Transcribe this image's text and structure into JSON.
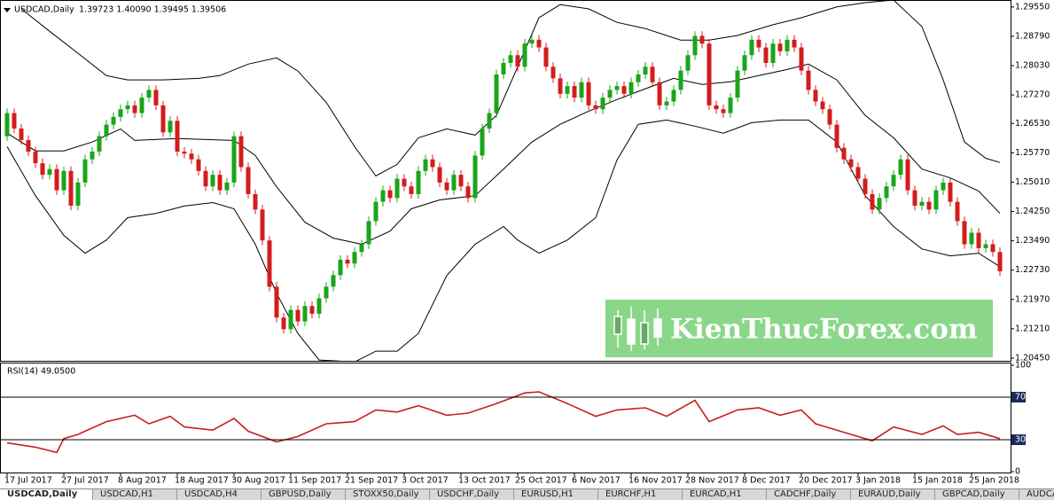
{
  "chart_data": [
    {
      "type": "candlestick",
      "title": "USDCAD,Daily",
      "subtitle": "1.39723 1.40090 1.39495 1.39506",
      "up_color": "#1aa51a",
      "down_color": "#d41c1c",
      "xlim": [
        -1,
        141.5
      ],
      "ylim": [
        1.2038,
        1.2973
      ],
      "xticks": [
        {
          "value": 0,
          "label": "17 Jul 2017"
        },
        {
          "value": 8,
          "label": "27 Jul 2017"
        },
        {
          "value": 16,
          "label": "8 Aug 2017"
        },
        {
          "value": 24,
          "label": "18 Aug 2017"
        },
        {
          "value": 32,
          "label": "30 Aug 2017"
        },
        {
          "value": 40,
          "label": "11 Sep 2017"
        },
        {
          "value": 48,
          "label": "21 Sep 2017"
        },
        {
          "value": 56,
          "label": "3 Oct 2017"
        },
        {
          "value": 64,
          "label": "13 Oct 2017"
        },
        {
          "value": 72,
          "label": "25 Oct 2017"
        },
        {
          "value": 80,
          "label": "6 Nov 2017"
        },
        {
          "value": 88,
          "label": "16 Nov 2017"
        },
        {
          "value": 96,
          "label": "28 Nov 2017"
        },
        {
          "value": 104,
          "label": "8 Dec 2017"
        },
        {
          "value": 112,
          "label": "20 Dec 2017"
        },
        {
          "value": 120,
          "label": "3 Jan 2018"
        },
        {
          "value": 128,
          "label": "15 Jan 2018"
        },
        {
          "value": 136,
          "label": "25 Jan 2018"
        }
      ],
      "yticks": [
        {
          "value": 1.2955,
          "label": "1.29550"
        },
        {
          "value": 1.2879,
          "label": "1.28790"
        },
        {
          "value": 1.2803,
          "label": "1.28030"
        },
        {
          "value": 1.2727,
          "label": "1.27270"
        },
        {
          "value": 1.2653,
          "label": "1.26530"
        },
        {
          "value": 1.2577,
          "label": "1.25770"
        },
        {
          "value": 1.2501,
          "label": "1.25010"
        },
        {
          "value": 1.2425,
          "label": "1.24250"
        },
        {
          "value": 1.2349,
          "label": "1.23490"
        },
        {
          "value": 1.2273,
          "label": "1.22730"
        },
        {
          "value": 1.2197,
          "label": "1.21970"
        },
        {
          "value": 1.2121,
          "label": "1.21210"
        },
        {
          "value": 1.2045,
          "label": "1.20450"
        }
      ],
      "open": [
        1.262,
        1.268,
        1.264,
        1.261,
        1.258,
        1.255,
        1.252,
        1.2535,
        1.248,
        1.253,
        1.244,
        1.25,
        1.256,
        1.258,
        1.262,
        1.265,
        1.267,
        1.269,
        1.27,
        1.268,
        1.272,
        1.274,
        1.27,
        1.263,
        1.266,
        1.258,
        1.2575,
        1.256,
        1.253,
        1.249,
        1.252,
        1.248,
        1.25,
        1.262,
        1.254,
        1.247,
        1.243,
        1.235,
        1.223,
        1.215,
        1.212,
        1.217,
        1.214,
        1.218,
        1.216,
        1.22,
        1.223,
        1.226,
        1.23,
        1.229,
        1.232,
        1.234,
        1.24,
        1.245,
        1.248,
        1.246,
        1.251,
        1.249,
        1.247,
        1.253,
        1.256,
        1.254,
        1.25,
        1.248,
        1.252,
        1.249,
        1.246,
        1.257,
        1.264,
        1.268,
        1.278,
        1.281,
        1.283,
        1.28,
        1.286,
        1.287,
        1.285,
        1.28,
        1.277,
        1.273,
        1.275,
        1.272,
        1.276,
        1.27,
        1.269,
        1.272,
        1.274,
        1.275,
        1.273,
        1.276,
        1.278,
        1.28,
        1.276,
        1.27,
        1.271,
        1.274,
        1.279,
        1.283,
        1.288,
        1.286,
        1.27,
        1.269,
        1.268,
        1.272,
        1.279,
        1.283,
        1.287,
        1.285,
        1.281,
        1.286,
        1.284,
        1.287,
        1.285,
        1.279,
        1.274,
        1.271,
        1.269,
        1.265,
        1.259,
        1.256,
        1.254,
        1.251,
        1.247,
        1.243,
        1.246,
        1.249,
        1.252,
        1.256,
        1.248,
        1.244,
        1.245,
        1.243,
        1.248,
        1.25,
        1.245,
        1.24,
        1.234,
        1.237,
        1.233,
        1.234,
        1.232
      ],
      "high": [
        1.2692,
        1.2692,
        1.2652,
        1.2622,
        1.2592,
        1.2562,
        1.2547,
        1.2547,
        1.2542,
        1.2542,
        1.2512,
        1.2572,
        1.2592,
        1.2632,
        1.2662,
        1.2682,
        1.2702,
        1.2712,
        1.2712,
        1.2732,
        1.2752,
        1.2752,
        1.2712,
        1.2672,
        1.2672,
        1.2592,
        1.2587,
        1.2572,
        1.2542,
        1.2532,
        1.2532,
        1.2512,
        1.2632,
        1.2632,
        1.2552,
        1.2482,
        1.2442,
        1.2362,
        1.2242,
        1.2162,
        1.2182,
        1.2182,
        1.2192,
        1.2192,
        1.2212,
        1.2242,
        1.2272,
        1.2312,
        1.2312,
        1.2332,
        1.2352,
        1.2412,
        1.2462,
        1.2492,
        1.2492,
        1.2522,
        1.2522,
        1.2502,
        1.2542,
        1.2572,
        1.2572,
        1.2552,
        1.2512,
        1.2532,
        1.2532,
        1.2502,
        1.2582,
        1.2652,
        1.2692,
        1.2792,
        1.2822,
        1.2842,
        1.2842,
        1.2872,
        1.2882,
        1.2882,
        1.2862,
        1.2812,
        1.2782,
        1.2762,
        1.2762,
        1.2772,
        1.2772,
        1.2712,
        1.2732,
        1.2752,
        1.2762,
        1.2762,
        1.2772,
        1.2792,
        1.2812,
        1.2812,
        1.2772,
        1.2722,
        1.2752,
        1.2802,
        1.2842,
        1.2892,
        1.2892,
        1.2872,
        1.2712,
        1.2702,
        1.2732,
        1.2802,
        1.2842,
        1.2882,
        1.2882,
        1.2862,
        1.2872,
        1.2872,
        1.2882,
        1.2882,
        1.2862,
        1.2802,
        1.2752,
        1.2722,
        1.2702,
        1.2662,
        1.2602,
        1.2572,
        1.2552,
        1.2522,
        1.2482,
        1.2472,
        1.2502,
        1.2532,
        1.2572,
        1.2572,
        1.2492,
        1.2462,
        1.2462,
        1.2492,
        1.2512,
        1.2512,
        1.2462,
        1.2412,
        1.2382,
        1.2382,
        1.2352,
        1.2352,
        1.2332
      ],
      "low": [
        1.2608,
        1.2628,
        1.2598,
        1.2568,
        1.2538,
        1.2508,
        1.2508,
        1.2468,
        1.2468,
        1.2428,
        1.2428,
        1.2488,
        1.2548,
        1.2568,
        1.2608,
        1.2638,
        1.2658,
        1.2678,
        1.2668,
        1.2668,
        1.2708,
        1.2688,
        1.2618,
        1.2618,
        1.2568,
        1.2563,
        1.2548,
        1.2518,
        1.2478,
        1.2478,
        1.2468,
        1.2468,
        1.2488,
        1.2528,
        1.2458,
        1.2418,
        1.2338,
        1.2218,
        1.2138,
        1.2108,
        1.2108,
        1.2128,
        1.2128,
        1.2148,
        1.2148,
        1.2188,
        1.2218,
        1.2248,
        1.2278,
        1.2278,
        1.2308,
        1.2328,
        1.2388,
        1.2438,
        1.2448,
        1.2448,
        1.2478,
        1.2458,
        1.2458,
        1.2518,
        1.2528,
        1.2488,
        1.2468,
        1.2468,
        1.2478,
        1.2448,
        1.2448,
        1.2558,
        1.2628,
        1.2668,
        1.2768,
        1.2798,
        1.2788,
        1.2788,
        1.2848,
        1.2838,
        1.2788,
        1.2758,
        1.2718,
        1.2718,
        1.2708,
        1.2708,
        1.2688,
        1.2678,
        1.2678,
        1.2708,
        1.2728,
        1.2718,
        1.2718,
        1.2748,
        1.2768,
        1.2748,
        1.2688,
        1.2688,
        1.2698,
        1.2728,
        1.2778,
        1.2818,
        1.2848,
        1.2688,
        1.2678,
        1.2668,
        1.2668,
        1.2708,
        1.2778,
        1.2818,
        1.2838,
        1.2798,
        1.2798,
        1.2828,
        1.2828,
        1.2838,
        1.2778,
        1.2728,
        1.2698,
        1.2678,
        1.2638,
        1.2578,
        1.2548,
        1.2528,
        1.2498,
        1.2458,
        1.2418,
        1.2418,
        1.2448,
        1.2478,
        1.2508,
        1.2468,
        1.2428,
        1.2428,
        1.2418,
        1.2418,
        1.2468,
        1.2438,
        1.2388,
        1.2328,
        1.2328,
        1.2318,
        1.2318,
        1.2308,
        1.2258
      ],
      "close": [
        1.268,
        1.264,
        1.261,
        1.258,
        1.255,
        1.252,
        1.2535,
        1.248,
        1.253,
        1.244,
        1.25,
        1.256,
        1.258,
        1.262,
        1.265,
        1.267,
        1.269,
        1.27,
        1.268,
        1.272,
        1.274,
        1.27,
        1.263,
        1.266,
        1.258,
        1.2575,
        1.256,
        1.253,
        1.249,
        1.252,
        1.248,
        1.25,
        1.262,
        1.254,
        1.247,
        1.243,
        1.235,
        1.223,
        1.215,
        1.212,
        1.217,
        1.214,
        1.218,
        1.216,
        1.22,
        1.223,
        1.226,
        1.23,
        1.229,
        1.232,
        1.234,
        1.24,
        1.245,
        1.248,
        1.246,
        1.251,
        1.249,
        1.247,
        1.253,
        1.256,
        1.254,
        1.25,
        1.248,
        1.252,
        1.249,
        1.246,
        1.257,
        1.264,
        1.268,
        1.278,
        1.281,
        1.283,
        1.28,
        1.286,
        1.287,
        1.285,
        1.28,
        1.277,
        1.273,
        1.275,
        1.272,
        1.276,
        1.27,
        1.269,
        1.272,
        1.274,
        1.275,
        1.273,
        1.276,
        1.278,
        1.28,
        1.276,
        1.27,
        1.271,
        1.274,
        1.279,
        1.283,
        1.288,
        1.286,
        1.27,
        1.269,
        1.268,
        1.272,
        1.279,
        1.283,
        1.287,
        1.285,
        1.281,
        1.286,
        1.284,
        1.287,
        1.285,
        1.279,
        1.274,
        1.271,
        1.269,
        1.265,
        1.259,
        1.256,
        1.254,
        1.251,
        1.247,
        1.243,
        1.246,
        1.249,
        1.252,
        1.256,
        1.248,
        1.244,
        1.245,
        1.243,
        1.248,
        1.25,
        1.245,
        1.24,
        1.234,
        1.237,
        1.233,
        1.234,
        1.232,
        1.227
      ],
      "series": [
        {
          "color": "#000000",
          "x": [
            2,
            6,
            10,
            14,
            17,
            22,
            27,
            30,
            34,
            38,
            41,
            45,
            49,
            52,
            55,
            58,
            62,
            66,
            69,
            72,
            75,
            78,
            82,
            86,
            90,
            95,
            99,
            103,
            108,
            112,
            117,
            121,
            125,
            129,
            132,
            135,
            138,
            140
          ],
          "values": [
            1.295,
            1.2892,
            1.2835,
            1.2777,
            1.2766,
            1.2766,
            1.277,
            1.2777,
            1.2807,
            1.2823,
            1.2789,
            1.2708,
            1.2593,
            1.2517,
            1.2547,
            1.2616,
            1.2639,
            1.2623,
            1.2674,
            1.28,
            1.2927,
            1.2961,
            1.295,
            1.2915,
            1.2899,
            1.2869,
            1.2869,
            1.2881,
            1.2909,
            1.2927,
            1.2955,
            1.2966,
            1.2973,
            1.2904,
            1.2766,
            1.2605,
            1.2563,
            1.2552
          ]
        },
        {
          "color": "#000000",
          "x": [
            0,
            4,
            8,
            12,
            16,
            18,
            24,
            32,
            35,
            38,
            42,
            46,
            50,
            54,
            57,
            61,
            66,
            70,
            74,
            78,
            82,
            86,
            90,
            94,
            98,
            102,
            106,
            110,
            113,
            117,
            121,
            125,
            129,
            133,
            137,
            140
          ],
          "values": [
            1.2628,
            1.2582,
            1.2582,
            1.2605,
            1.2639,
            1.2609,
            1.2614,
            1.2609,
            1.257,
            1.2489,
            1.2397,
            1.2356,
            1.234,
            1.2374,
            1.2432,
            1.2455,
            1.2466,
            1.2535,
            1.2605,
            1.2651,
            1.2685,
            1.2715,
            1.2743,
            1.277,
            1.2754,
            1.2761,
            1.2777,
            1.2793,
            1.2807,
            1.2766,
            1.2674,
            1.2616,
            1.2535,
            1.2512,
            1.2478,
            1.242
          ]
        },
        {
          "color": "#000000",
          "x": [
            0,
            4,
            8,
            11,
            14,
            17,
            21,
            25,
            29,
            32,
            35,
            38,
            41,
            44,
            49,
            52,
            55,
            58,
            62,
            66,
            70,
            72,
            75,
            79,
            83,
            86,
            89,
            93,
            97,
            101,
            105,
            109,
            113,
            117,
            121,
            125,
            129,
            133,
            137,
            140
          ],
          "values": [
            1.2593,
            1.2466,
            1.2363,
            1.2317,
            1.2351,
            1.2409,
            1.242,
            1.2439,
            1.2448,
            1.2432,
            1.234,
            1.2213,
            1.2109,
            1.204,
            1.2035,
            1.2063,
            1.2063,
            1.2109,
            1.2259,
            1.234,
            1.2386,
            1.2351,
            1.2317,
            1.2351,
            1.2409,
            1.2558,
            1.2651,
            1.2662,
            1.2646,
            1.2628,
            1.2655,
            1.2662,
            1.2662,
            1.2605,
            1.2466,
            1.2386,
            1.2328,
            1.231,
            1.2317,
            1.2282
          ]
        }
      ]
    },
    {
      "type": "line",
      "title": "RSI(14) 49.0500",
      "xlim": [
        -1,
        141.5
      ],
      "ylim": [
        0,
        100
      ],
      "yticks": [
        100,
        70,
        30,
        0
      ],
      "levels": [
        70,
        30
      ],
      "series": [
        {
          "color": "#c81e1e",
          "x": [
            0,
            4,
            7,
            8,
            10,
            14,
            18,
            20,
            23,
            25,
            29,
            32,
            34,
            38,
            41,
            45,
            49,
            52,
            55,
            58,
            62,
            65,
            69,
            73,
            75,
            79,
            83,
            86,
            90,
            93,
            97,
            99,
            103,
            106,
            109,
            112,
            114,
            118,
            122,
            125,
            129,
            132,
            134,
            137,
            140
          ],
          "values": [
            27,
            23,
            18,
            31,
            35,
            47,
            53,
            45,
            52,
            42,
            39,
            50,
            38,
            28,
            33,
            45,
            47,
            58,
            56,
            62,
            53,
            55,
            64,
            74,
            75,
            64,
            52,
            58,
            60,
            52,
            67,
            47,
            58,
            60,
            53,
            58,
            45,
            37,
            29,
            42,
            35,
            43,
            35,
            37,
            31
          ]
        }
      ]
    }
  ],
  "watermark": "KienThucForex.com",
  "tabs": [
    "USDCAD,Daily",
    "USDCAD,H1",
    "USDCAD,H4",
    "GBPUSD,Daily",
    "STOXX50,Daily",
    "USDCHF,Daily",
    "EURUSD,H1",
    "EURCHF,H1",
    "EURCAD,H1",
    "CADCHF,Daily",
    "EURAUD,Daily",
    "GBPCAD,Daily",
    "AUDCAD,Daily"
  ]
}
